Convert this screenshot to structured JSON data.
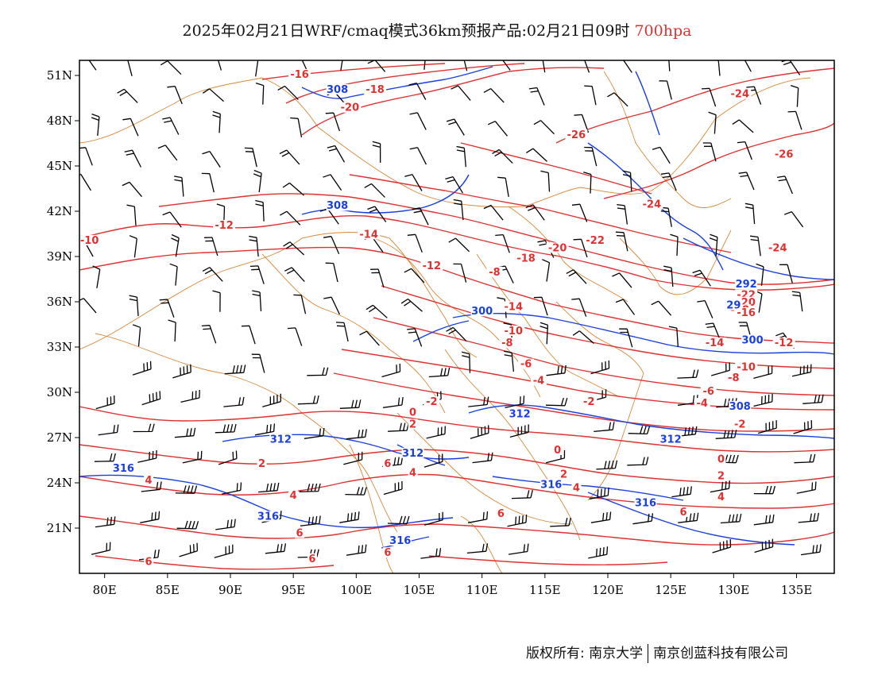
{
  "title": {
    "main": "2025年02月21日WRF/cmaq模式36km预报产品:02月21日09时",
    "level": "700hpa"
  },
  "colors": {
    "temperature": "#e03030",
    "geopotential": "#1a3fe0",
    "boundary": "#d9883a",
    "wind": "#000000"
  },
  "map": {
    "lon_range": [
      78,
      138
    ],
    "lat_range": [
      18,
      52
    ],
    "x_ticks": [
      {
        "lon": 80,
        "label": "80E"
      },
      {
        "lon": 85,
        "label": "85E"
      },
      {
        "lon": 90,
        "label": "90E"
      },
      {
        "lon": 95,
        "label": "95E"
      },
      {
        "lon": 100,
        "label": "100E"
      },
      {
        "lon": 105,
        "label": "105E"
      },
      {
        "lon": 110,
        "label": "110E"
      },
      {
        "lon": 115,
        "label": "115E"
      },
      {
        "lon": 120,
        "label": "120E"
      },
      {
        "lon": 125,
        "label": "125E"
      },
      {
        "lon": 130,
        "label": "130E"
      },
      {
        "lon": 135,
        "label": "135E"
      }
    ],
    "y_ticks": [
      {
        "lat": 51,
        "label": "51N"
      },
      {
        "lat": 48,
        "label": "48N"
      },
      {
        "lat": 45,
        "label": "45N"
      },
      {
        "lat": 42,
        "label": "42N"
      },
      {
        "lat": 39,
        "label": "39N"
      },
      {
        "lat": 36,
        "label": "36N"
      },
      {
        "lat": 33,
        "label": "33N"
      },
      {
        "lat": 30,
        "label": "30N"
      },
      {
        "lat": 27,
        "label": "27N"
      },
      {
        "lat": 24,
        "label": "24N"
      },
      {
        "lat": 21,
        "label": "21N"
      }
    ],
    "temperature_labels": [
      {
        "lon": 95.5,
        "lat": 50.9,
        "text": "-16"
      },
      {
        "lon": 101.5,
        "lat": 49.9,
        "text": "-18"
      },
      {
        "lon": 99.5,
        "lat": 48.7,
        "text": "-20"
      },
      {
        "lon": 130.5,
        "lat": 49.6,
        "text": "-24"
      },
      {
        "lon": 117.5,
        "lat": 46.9,
        "text": "-26"
      },
      {
        "lon": 134,
        "lat": 45.6,
        "text": "-26"
      },
      {
        "lon": 123.5,
        "lat": 42.3,
        "text": "-24"
      },
      {
        "lon": 89.5,
        "lat": 40.9,
        "text": "-12"
      },
      {
        "lon": 101,
        "lat": 40.3,
        "text": "-14"
      },
      {
        "lon": 78.8,
        "lat": 39.9,
        "text": "-10"
      },
      {
        "lon": 119,
        "lat": 39.9,
        "text": "-22"
      },
      {
        "lon": 116,
        "lat": 39.4,
        "text": "-20"
      },
      {
        "lon": 133.5,
        "lat": 39.4,
        "text": "-24"
      },
      {
        "lon": 113.5,
        "lat": 38.7,
        "text": "-18"
      },
      {
        "lon": 106,
        "lat": 38.2,
        "text": "-12"
      },
      {
        "lon": 111,
        "lat": 37.8,
        "text": "-8"
      },
      {
        "lon": 131,
        "lat": 36.3,
        "text": "-22"
      },
      {
        "lon": 131,
        "lat": 35.8,
        "text": "-20"
      },
      {
        "lon": 130.5,
        "lat": 35.3,
        "text": "-18"
      },
      {
        "lon": 131,
        "lat": 35.1,
        "text": "-16"
      },
      {
        "lon": 112.5,
        "lat": 35.5,
        "text": "-14"
      },
      {
        "lon": 112.5,
        "lat": 33.9,
        "text": "-10"
      },
      {
        "lon": 112,
        "lat": 33.1,
        "text": "-8"
      },
      {
        "lon": 128.5,
        "lat": 33.1,
        "text": "-14"
      },
      {
        "lon": 134,
        "lat": 33.1,
        "text": "-12"
      },
      {
        "lon": 113.5,
        "lat": 31.7,
        "text": "-6"
      },
      {
        "lon": 131,
        "lat": 31.5,
        "text": "-10"
      },
      {
        "lon": 130,
        "lat": 30.8,
        "text": "-8"
      },
      {
        "lon": 114.5,
        "lat": 30.6,
        "text": "-4"
      },
      {
        "lon": 128,
        "lat": 29.9,
        "text": "-6"
      },
      {
        "lon": 106,
        "lat": 29.2,
        "text": "-2"
      },
      {
        "lon": 118.5,
        "lat": 29.2,
        "text": "-2"
      },
      {
        "lon": 127.5,
        "lat": 29.1,
        "text": "-4"
      },
      {
        "lon": 104.5,
        "lat": 28.5,
        "text": "0"
      },
      {
        "lon": 104.5,
        "lat": 27.7,
        "text": "2"
      },
      {
        "lon": 130.5,
        "lat": 27.7,
        "text": "-2"
      },
      {
        "lon": 116,
        "lat": 26.0,
        "text": "0"
      },
      {
        "lon": 129,
        "lat": 25.4,
        "text": "0"
      },
      {
        "lon": 92.5,
        "lat": 25.1,
        "text": "2"
      },
      {
        "lon": 102.5,
        "lat": 25.1,
        "text": "6"
      },
      {
        "lon": 104.5,
        "lat": 24.5,
        "text": "4"
      },
      {
        "lon": 116.5,
        "lat": 24.4,
        "text": "2"
      },
      {
        "lon": 129,
        "lat": 24.3,
        "text": "2"
      },
      {
        "lon": 83.5,
        "lat": 24.0,
        "text": "4"
      },
      {
        "lon": 95,
        "lat": 23.0,
        "text": "4"
      },
      {
        "lon": 117.5,
        "lat": 23.5,
        "text": "4"
      },
      {
        "lon": 129,
        "lat": 22.9,
        "text": "4"
      },
      {
        "lon": 111.5,
        "lat": 21.8,
        "text": "6"
      },
      {
        "lon": 126,
        "lat": 21.9,
        "text": "6"
      },
      {
        "lon": 95.5,
        "lat": 20.5,
        "text": "6"
      },
      {
        "lon": 102.5,
        "lat": 19.2,
        "text": "6"
      },
      {
        "lon": 83.5,
        "lat": 18.6,
        "text": "6"
      },
      {
        "lon": 96.5,
        "lat": 18.8,
        "text": "6"
      }
    ],
    "height_labels": [
      {
        "lon": 98.5,
        "lat": 49.9,
        "text": "308"
      },
      {
        "lon": 98.5,
        "lat": 42.2,
        "text": "308"
      },
      {
        "lon": 131,
        "lat": 37.0,
        "text": "292"
      },
      {
        "lon": 110,
        "lat": 35.2,
        "text": "300"
      },
      {
        "lon": 130,
        "lat": 35.6,
        "text": "29"
      },
      {
        "lon": 131.5,
        "lat": 33.3,
        "text": "300"
      },
      {
        "lon": 130.5,
        "lat": 28.9,
        "text": "308"
      },
      {
        "lon": 113,
        "lat": 28.4,
        "text": "312"
      },
      {
        "lon": 94,
        "lat": 26.7,
        "text": "312"
      },
      {
        "lon": 125,
        "lat": 26.7,
        "text": "312"
      },
      {
        "lon": 104.5,
        "lat": 25.8,
        "text": "312"
      },
      {
        "lon": 81.5,
        "lat": 24.8,
        "text": "316"
      },
      {
        "lon": 115.5,
        "lat": 23.7,
        "text": "316"
      },
      {
        "lon": 123,
        "lat": 22.5,
        "text": "316"
      },
      {
        "lon": 93,
        "lat": 21.6,
        "text": "316"
      },
      {
        "lon": 103.5,
        "lat": 20.0,
        "text": "316"
      }
    ]
  },
  "credit": {
    "left": "版权所有: 南京大学",
    "right": "南京创蓝科技有限公司"
  }
}
